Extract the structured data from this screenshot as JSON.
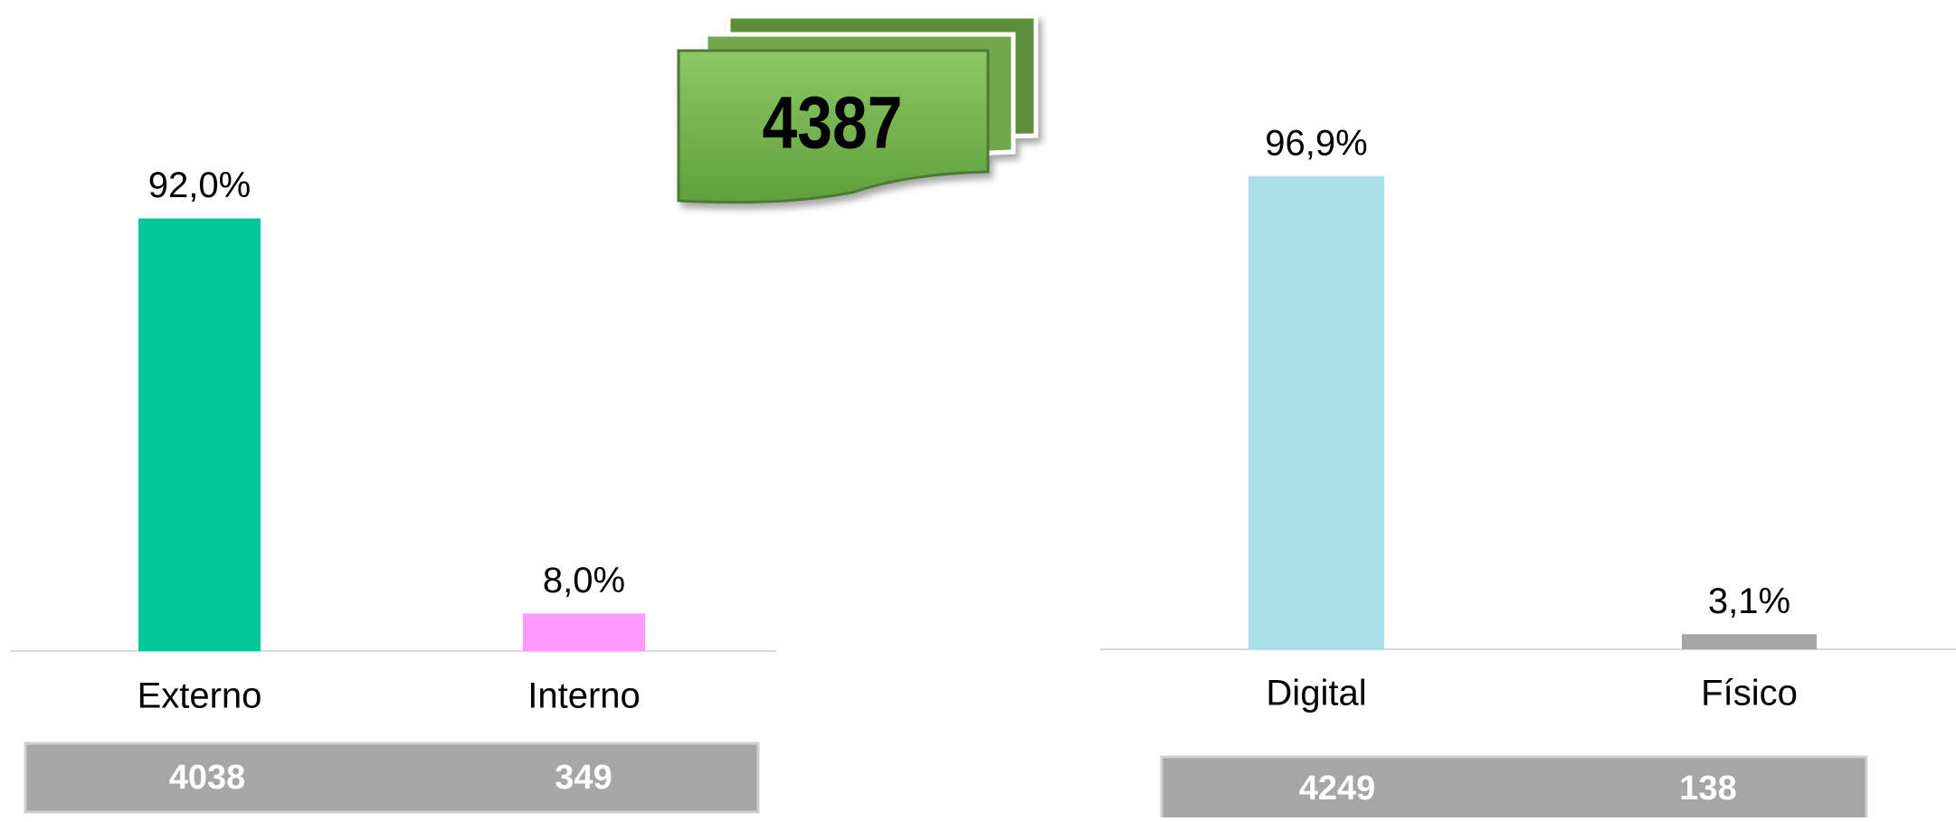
{
  "badge": {
    "value": 4387
  },
  "chart_data": [
    {
      "type": "bar",
      "categories": [
        "Externo",
        "Interno"
      ],
      "values": [
        92.0,
        8.0
      ],
      "value_labels": [
        "92,0%",
        "8,0%"
      ],
      "colors": [
        "#00c896",
        "#ff99ff"
      ],
      "counts": [
        4038,
        349
      ]
    },
    {
      "type": "bar",
      "categories": [
        "Digital",
        "Físico"
      ],
      "values": [
        96.9,
        3.1
      ],
      "value_labels": [
        "96,9%",
        "3,1%"
      ],
      "colors": [
        "#a9dfe8",
        "#a6a6a6"
      ],
      "counts": [
        4249,
        138
      ]
    }
  ]
}
